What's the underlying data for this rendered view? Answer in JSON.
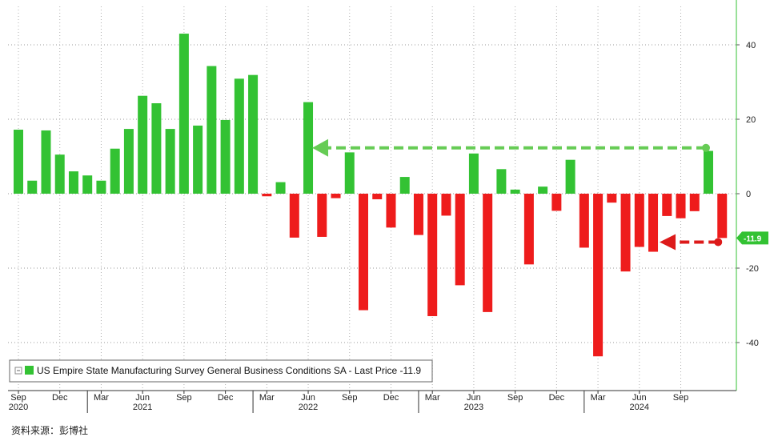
{
  "chart_data": {
    "type": "bar",
    "title": "",
    "series": [
      {
        "name": "US Empire State Manufacturing Survey General Business Conditions SA - Last Price",
        "last_price": "-11.9",
        "values": [
          17.2,
          3.5,
          17.0,
          10.5,
          6.0,
          4.9,
          3.5,
          12.1,
          17.4,
          26.3,
          24.3,
          17.4,
          43.0,
          18.3,
          34.3,
          19.8,
          30.9,
          31.9,
          -0.7,
          3.1,
          -11.8,
          24.6,
          -11.6,
          -1.2,
          11.1,
          -31.3,
          -1.5,
          -9.1,
          4.5,
          -11.1,
          -32.9,
          -5.9,
          -24.6,
          10.8,
          -31.8,
          6.6,
          1.1,
          -19.0,
          1.9,
          -4.6,
          9.1,
          -14.5,
          -43.7,
          -2.4,
          -20.9,
          -14.3,
          -15.6,
          -6.0,
          -6.6,
          -4.7,
          11.5,
          -11.9
        ]
      }
    ],
    "ylim": [
      -50,
      50
    ],
    "yticks": [
      "40",
      "20",
      "0",
      "-20",
      "-40"
    ],
    "x_month_ticks": [
      {
        "label": "Sep",
        "index": 0
      },
      {
        "label": "Dec",
        "index": 3
      },
      {
        "label": "Mar",
        "index": 6
      },
      {
        "label": "Jun",
        "index": 9
      },
      {
        "label": "Sep",
        "index": 12
      },
      {
        "label": "Dec",
        "index": 15
      },
      {
        "label": "Mar",
        "index": 18
      },
      {
        "label": "Jun",
        "index": 21
      },
      {
        "label": "Sep",
        "index": 24
      },
      {
        "label": "Dec",
        "index": 27
      },
      {
        "label": "Mar",
        "index": 30
      },
      {
        "label": "Jun",
        "index": 33
      },
      {
        "label": "Sep",
        "index": 36
      },
      {
        "label": "Dec",
        "index": 39
      },
      {
        "label": "Mar",
        "index": 42
      },
      {
        "label": "Jun",
        "index": 45
      },
      {
        "label": "Sep",
        "index": 48
      }
    ],
    "x_year_ticks": [
      {
        "label": "2020",
        "index": 0
      },
      {
        "label": "2021",
        "index": 9
      },
      {
        "label": "2022",
        "index": 21
      },
      {
        "label": "2023",
        "index": 33
      },
      {
        "label": "2024",
        "index": 45
      }
    ],
    "colors": {
      "positive": "#33c233",
      "negative": "#ee1c1c",
      "axis": "#33c233",
      "arrow_green": "#66cc55",
      "arrow_red": "#dd1a1a"
    },
    "grid": true,
    "legend_position": "bottom-left",
    "annotations": [
      {
        "type": "arrow",
        "from_index": 50,
        "to_index": 21,
        "value": 12.3,
        "color": "green"
      },
      {
        "type": "arrow",
        "from_index": 51,
        "to_index": 46,
        "value": -13.0,
        "color": "red"
      }
    ]
  },
  "legend": {
    "text": "US Empire State Manufacturing Survey General Business Conditions SA - Last Price -11.9"
  },
  "source_text": "资料来源：彭博社"
}
